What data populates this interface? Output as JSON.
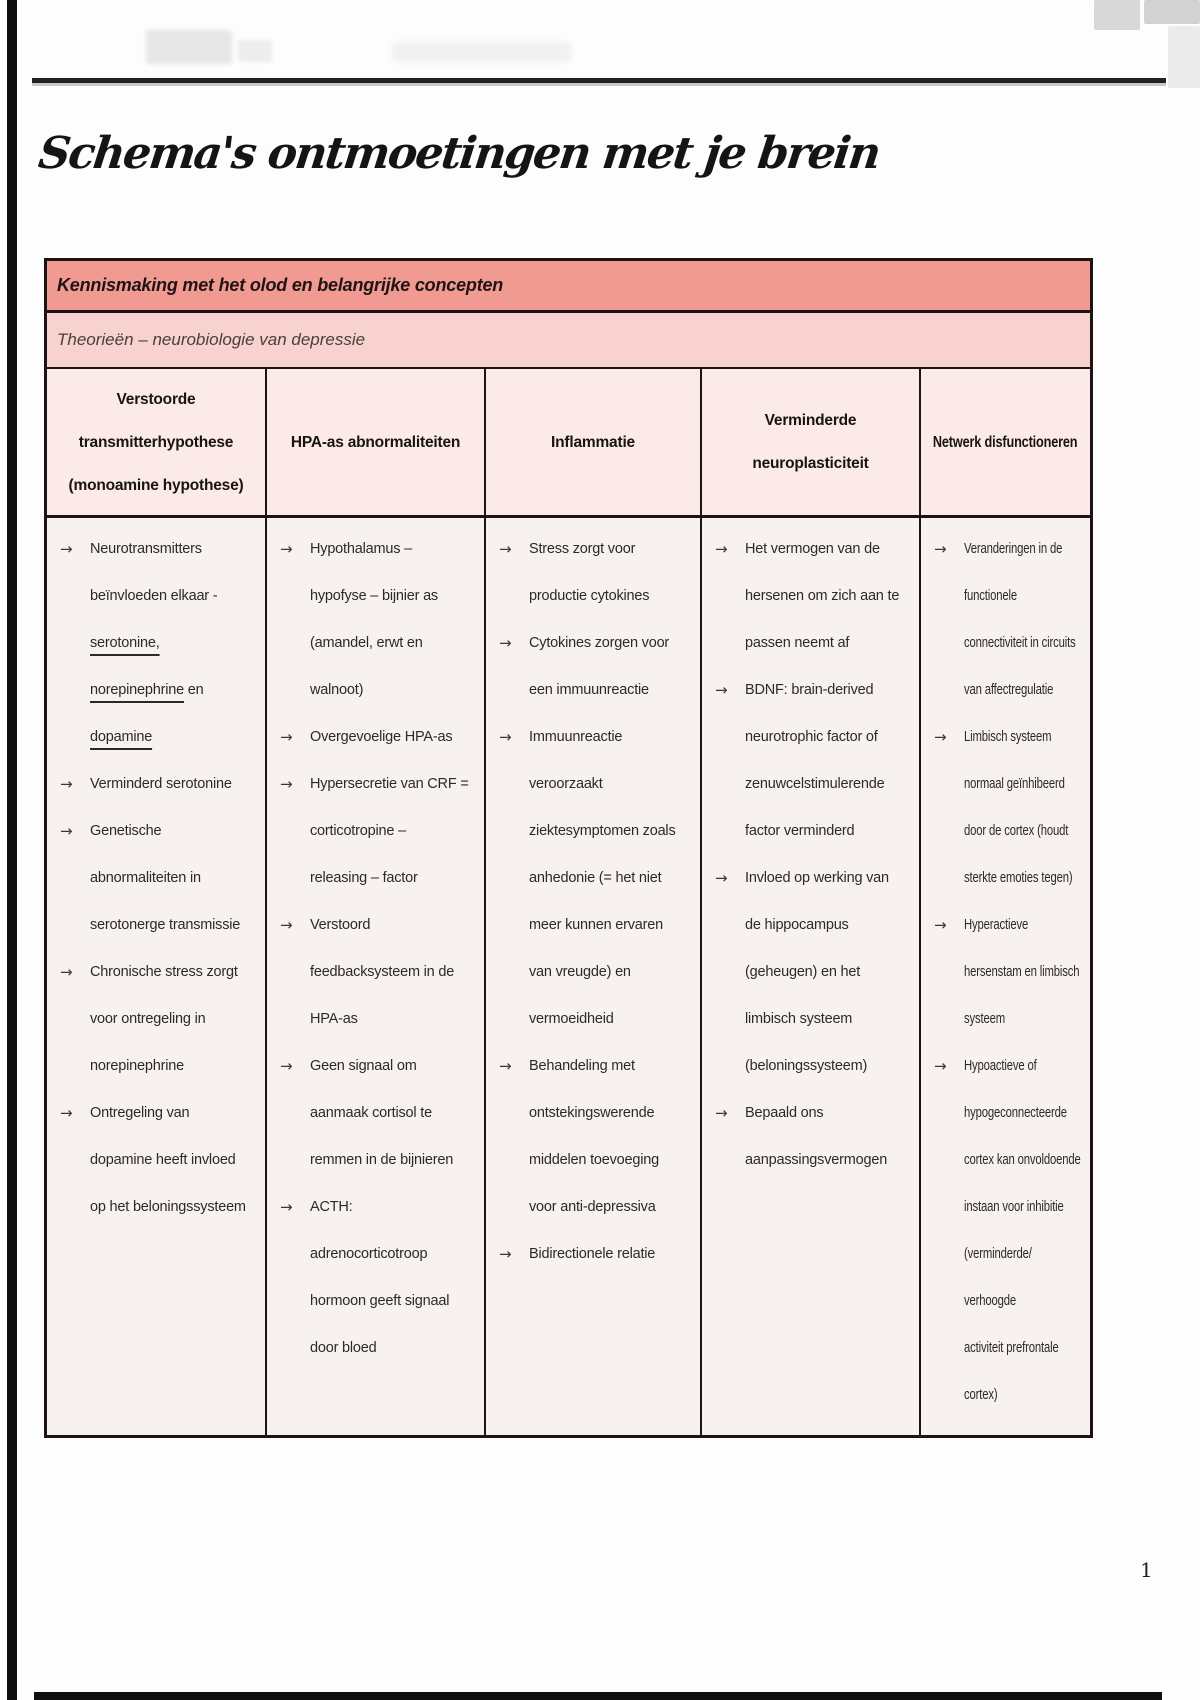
{
  "page": {
    "title": "Schema's ontmoetingen met je brein",
    "page_number": "1"
  },
  "icons": {
    "bullet_arrow": "→"
  },
  "colors": {
    "banner_primary": "#f19a92",
    "banner_secondary": "#f8d2ce",
    "header_row": "#fbeae7",
    "body_cells": "#f7f1ef",
    "table_border": "#1c1414",
    "text": "#2e2929"
  },
  "table": {
    "banner1": "Kennismaking met het olod en belangrijke concepten",
    "banner2": "Theorieën – neurobiologie van depressie",
    "columns": [
      {
        "header": "Verstoorde\ntransmitterhypothese\n(monoamine hypothese)",
        "items": [
          {
            "segments": [
              {
                "t": "Neurotransmitters\nbeïnvloeden elkaar -\n",
                "u": false
              },
              {
                "t": "serotonine,",
                "u": true
              },
              {
                "t": "\n",
                "u": false
              },
              {
                "t": "norepinephrine",
                "u": true
              },
              {
                "t": " en\n",
                "u": false
              },
              {
                "t": "dopamine",
                "u": true
              }
            ]
          },
          {
            "segments": [
              {
                "t": "Verminderd serotonine",
                "u": false
              }
            ]
          },
          {
            "segments": [
              {
                "t": "Genetische\nabnormaliteiten in\nserotonerge transmissie",
                "u": false
              }
            ]
          },
          {
            "segments": [
              {
                "t": "Chronische stress zorgt\nvoor ontregeling in\nnorepinephrine",
                "u": false
              }
            ]
          },
          {
            "segments": [
              {
                "t": "Ontregeling van\ndopamine heeft invloed\nop het beloningssysteem",
                "u": false
              }
            ]
          }
        ]
      },
      {
        "header": "HPA-as abnormaliteiten",
        "items": [
          {
            "segments": [
              {
                "t": "Hypothalamus –\nhypofyse – bijnier as\n(amandel, erwt en\nwalnoot)",
                "u": false
              }
            ]
          },
          {
            "segments": [
              {
                "t": "Overgevoelige HPA-as",
                "u": false
              }
            ]
          },
          {
            "segments": [
              {
                "t": "Hypersecretie van CRF =\ncorticotropine –\nreleasing – factor",
                "u": false
              }
            ]
          },
          {
            "segments": [
              {
                "t": "Verstoord\nfeedbacksysteem in de\nHPA-as",
                "u": false
              }
            ]
          },
          {
            "segments": [
              {
                "t": "Geen signaal om\naanmaak cortisol te\nremmen in de bijnieren",
                "u": false
              }
            ]
          },
          {
            "segments": [
              {
                "t": "ACTH:\nadrenocorticotroop\nhormoon geeft signaal\ndoor bloed",
                "u": false
              }
            ]
          }
        ]
      },
      {
        "header": "Inflammatie",
        "items": [
          {
            "segments": [
              {
                "t": "Stress zorgt voor\nproductie cytokines",
                "u": false
              }
            ]
          },
          {
            "segments": [
              {
                "t": "Cytokines zorgen voor\neen immuunreactie",
                "u": false
              }
            ]
          },
          {
            "segments": [
              {
                "t": "Immuunreactie\nveroorzaakt\nziektesymptomen zoals\nanhedonie (= het niet\nmeer kunnen ervaren\nvan vreugde) en\nvermoeidheid",
                "u": false
              }
            ]
          },
          {
            "segments": [
              {
                "t": "Behandeling met\nontstekingswerende\nmiddelen toevoeging\nvoor anti-depressiva",
                "u": false
              }
            ]
          },
          {
            "segments": [
              {
                "t": "Bidirectionele relatie",
                "u": false
              }
            ]
          }
        ]
      },
      {
        "header": "Verminderde\nneuroplasticiteit",
        "items": [
          {
            "segments": [
              {
                "t": "Het vermogen van de\nhersenen om zich aan te\npassen neemt af",
                "u": false
              }
            ]
          },
          {
            "segments": [
              {
                "t": "BDNF: brain-derived\nneurotrophic factor of\nzenuwcelstimulerende\nfactor verminderd",
                "u": false
              }
            ]
          },
          {
            "segments": [
              {
                "t": "Invloed op werking van\nde hippocampus\n(geheugen) en het\nlimbisch systeem\n(beloningssysteem)",
                "u": false
              }
            ]
          },
          {
            "segments": [
              {
                "t": "Bepaald ons\naanpassingsvermogen",
                "u": false
              }
            ]
          }
        ]
      },
      {
        "header": "Netwerk disfunctioneren",
        "items": [
          {
            "segments": [
              {
                "t": "Veranderingen in de\nfunctionele\nconnectiviteit in circuits\nvan affectregulatie",
                "u": false
              }
            ]
          },
          {
            "segments": [
              {
                "t": "Limbisch systeem\nnormaal geïnhibeerd\ndoor de cortex (houdt\nsterkte emoties tegen)",
                "u": false
              }
            ]
          },
          {
            "segments": [
              {
                "t": "Hyperactieve\nhersenstam en limbisch\nsysteem",
                "u": false
              }
            ]
          },
          {
            "segments": [
              {
                "t": "Hypoactieve of\nhypogeconnecteerde\ncortex kan onvoldoende\ninstaan voor inhibitie\n(verminderde/\nverhoogde\nactiviteit prefrontale\ncortex)",
                "u": false
              }
            ]
          }
        ]
      }
    ]
  }
}
